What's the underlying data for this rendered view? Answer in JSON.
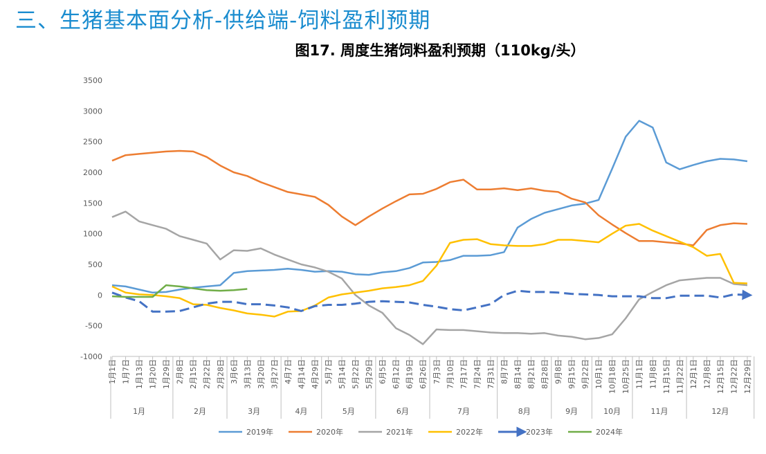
{
  "page_title": "三、生猪基本面分析-供给端-饲料盈利预期",
  "chart_data": {
    "type": "line",
    "title": "图17. 周度生猪饲料盈利预期（110kg/头）",
    "categories": [
      "1月1日",
      "1月7日",
      "1月13日",
      "1月20日",
      "1月29日",
      "2月8日",
      "2月15日",
      "2月22日",
      "2月28日",
      "3月6日",
      "3月13日",
      "3月20日",
      "3月27日",
      "4月7日",
      "4月14日",
      "4月29日",
      "5月7日",
      "5月14日",
      "5月22日",
      "5月29日",
      "6月5日",
      "6月12日",
      "6月19日",
      "6月26日",
      "7月3日",
      "7月10日",
      "7月17日",
      "7月24日",
      "7月31日",
      "8月7日",
      "8月14日",
      "8月21日",
      "8月28日",
      "9月8日",
      "9月15日",
      "9月22日",
      "10月1日",
      "10月18日",
      "10月25日",
      "11月1日",
      "11月8日",
      "11月15日",
      "11月22日",
      "12月1日",
      "12月8日",
      "12月15日",
      "12月22日",
      "12月29日"
    ],
    "months": [
      "1月",
      "2月",
      "3月",
      "4月",
      "5月",
      "6月",
      "7月",
      "8月",
      "9月",
      "10月",
      "11月",
      "12月"
    ],
    "ylim": [
      -1000,
      3500
    ],
    "yticks": [
      -1000,
      -500,
      0,
      500,
      1000,
      1500,
      2000,
      2500,
      3000,
      3500
    ],
    "grid": false,
    "legend": "bottom",
    "series": [
      {
        "name": "2019年",
        "color": "#5b9bd5",
        "values": [
          160,
          140,
          90,
          40,
          50,
          90,
          120,
          140,
          160,
          360,
          390,
          400,
          410,
          430,
          410,
          380,
          390,
          380,
          340,
          330,
          370,
          390,
          440,
          530,
          540,
          570,
          640,
          640,
          650,
          700,
          1100,
          1240,
          1340,
          1400,
          1460,
          1490,
          1550,
          2060,
          2580,
          2840,
          2730,
          2160,
          2050,
          2120,
          2180,
          2220,
          2210,
          2180
        ]
      },
      {
        "name": "2020年",
        "color": "#ed7d31",
        "values": [
          2190,
          2280,
          2300,
          2320,
          2340,
          2350,
          2340,
          2250,
          2110,
          2000,
          1940,
          1840,
          1760,
          1680,
          1640,
          1600,
          1470,
          1280,
          1140,
          1280,
          1410,
          1530,
          1640,
          1650,
          1730,
          1840,
          1880,
          1720,
          1720,
          1740,
          1710,
          1740,
          1700,
          1680,
          1570,
          1510,
          1300,
          1150,
          1010,
          880,
          880,
          860,
          840,
          810,
          1060,
          1140,
          1170,
          1160
        ]
      },
      {
        "name": "2021年",
        "color": "#a5a5a5",
        "values": [
          1270,
          1360,
          1200,
          1140,
          1080,
          960,
          900,
          840,
          580,
          730,
          720,
          760,
          660,
          580,
          500,
          450,
          380,
          270,
          0,
          -170,
          -290,
          -540,
          -650,
          -800,
          -560,
          -570,
          -570,
          -590,
          -610,
          -620,
          -620,
          -630,
          -620,
          -660,
          -680,
          -720,
          -700,
          -640,
          -380,
          -70,
          50,
          160,
          240,
          260,
          280,
          280,
          180,
          160
        ]
      },
      {
        "name": "2022年",
        "color": "#ffc000",
        "values": [
          140,
          40,
          10,
          0,
          -20,
          -50,
          -150,
          -160,
          -210,
          -250,
          -300,
          -320,
          -350,
          -270,
          -260,
          -170,
          -40,
          10,
          40,
          70,
          110,
          130,
          160,
          230,
          480,
          850,
          900,
          910,
          830,
          810,
          800,
          800,
          830,
          900,
          900,
          880,
          860,
          1000,
          1130,
          1160,
          1050,
          960,
          870,
          780,
          640,
          670,
          200,
          190
        ]
      },
      {
        "name": "2023年",
        "color": "#4472c4",
        "dashed": true,
        "arrow": true,
        "values": [
          40,
          -40,
          -100,
          -270,
          -270,
          -260,
          -200,
          -140,
          -110,
          -110,
          -150,
          -150,
          -170,
          -200,
          -260,
          -180,
          -160,
          -160,
          -140,
          -110,
          -100,
          -110,
          -120,
          -160,
          -190,
          -230,
          -250,
          -200,
          -150,
          0,
          70,
          50,
          50,
          40,
          20,
          10,
          0,
          -20,
          -20,
          -20,
          -50,
          -50,
          -10,
          -10,
          -10,
          -40,
          10,
          0
        ]
      },
      {
        "name": "2024年",
        "color": "#70ad47",
        "values": [
          -20,
          -30,
          -30,
          -30,
          160,
          140,
          110,
          80,
          70,
          80,
          100,
          null,
          null,
          null,
          null,
          null,
          null,
          null,
          null,
          null,
          null,
          null,
          null,
          null,
          null,
          null,
          null,
          null,
          null,
          null,
          null,
          null,
          null,
          null,
          null,
          null,
          null,
          null,
          null,
          null,
          null,
          null,
          null,
          null,
          null,
          null,
          null,
          null
        ]
      }
    ]
  }
}
